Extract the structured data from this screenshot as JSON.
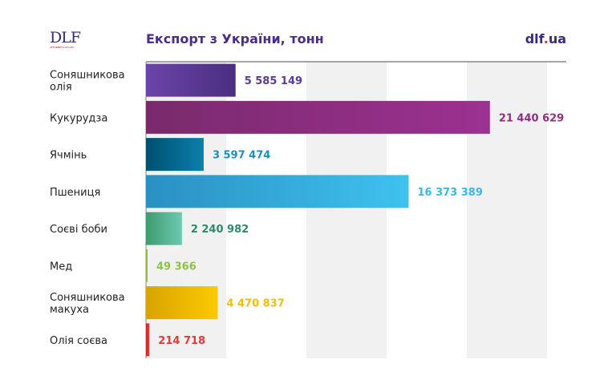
{
  "header": {
    "logo": "DLF",
    "logo_sub": "ATTORNEYS-AT-LAW",
    "site": "dlf",
    "site_dot": ".",
    "site_tld": "ua"
  },
  "chart_data": {
    "type": "bar",
    "orientation": "horizontal",
    "title": "Експорт з України, тонн",
    "categories": [
      [
        "Соняшникова",
        "олія"
      ],
      [
        "Кукурудза"
      ],
      [
        "Ячмінь"
      ],
      [
        "Пшениця"
      ],
      [
        "Соєві боби"
      ],
      [
        "Мед"
      ],
      [
        "Соняшникова",
        "макуха"
      ],
      [
        "Олія соєва"
      ]
    ],
    "values": [
      5585149,
      21440629,
      3597474,
      16373389,
      2240982,
      49366,
      4470837,
      214718
    ],
    "value_labels": [
      "5 585 149",
      "21 440 629",
      "3 597 474",
      "16 373 389",
      "2 240 982",
      "49 366",
      "4 470 837",
      "214 718"
    ],
    "colors": [
      [
        "#6b45a8",
        "#4a2e80"
      ],
      [
        "#7a2a6c",
        "#9c3192"
      ],
      [
        "#004e70",
        "#0c80ab"
      ],
      [
        "#2a90c2",
        "#3ec2ef"
      ],
      [
        "#3f9a6e",
        "#6ccab0"
      ],
      [
        "#8cc43f",
        "#8cc43f"
      ],
      [
        "#d7a400",
        "#fcc900"
      ],
      [
        "#c62828",
        "#e53935"
      ]
    ],
    "label_colors": [
      "#5b3a98",
      "#8f2f86",
      "#1a8fbc",
      "#3ab8e8",
      "#2f8a68",
      "#8cc43f",
      "#f5bf00",
      "#e53935"
    ],
    "xlim": [
      0,
      26200000
    ],
    "band_step": 5000000,
    "grid": "alternating bands"
  }
}
